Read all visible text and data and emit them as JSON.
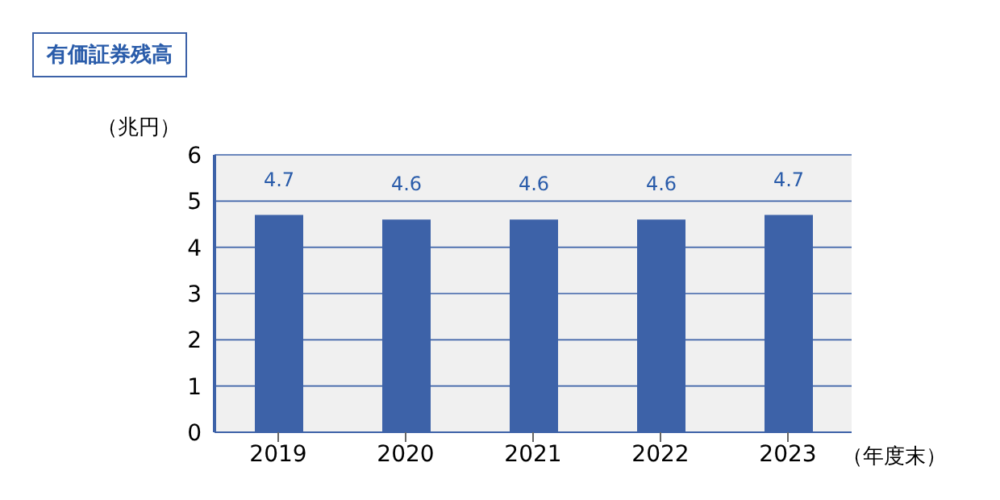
{
  "chart_data": {
    "type": "bar",
    "title": "有価証券残高",
    "ylabel": "（兆円）",
    "xlabel": "（年度末）",
    "categories": [
      "2019",
      "2020",
      "2021",
      "2022",
      "2023"
    ],
    "values": [
      4.7,
      4.6,
      4.6,
      4.6,
      4.7
    ],
    "color": "#3d62a8",
    "ylim": [
      0,
      6
    ],
    "yticks": [
      0,
      1,
      2,
      3,
      4,
      5,
      6
    ],
    "grid": "y",
    "data_labels": true,
    "legend": false
  }
}
